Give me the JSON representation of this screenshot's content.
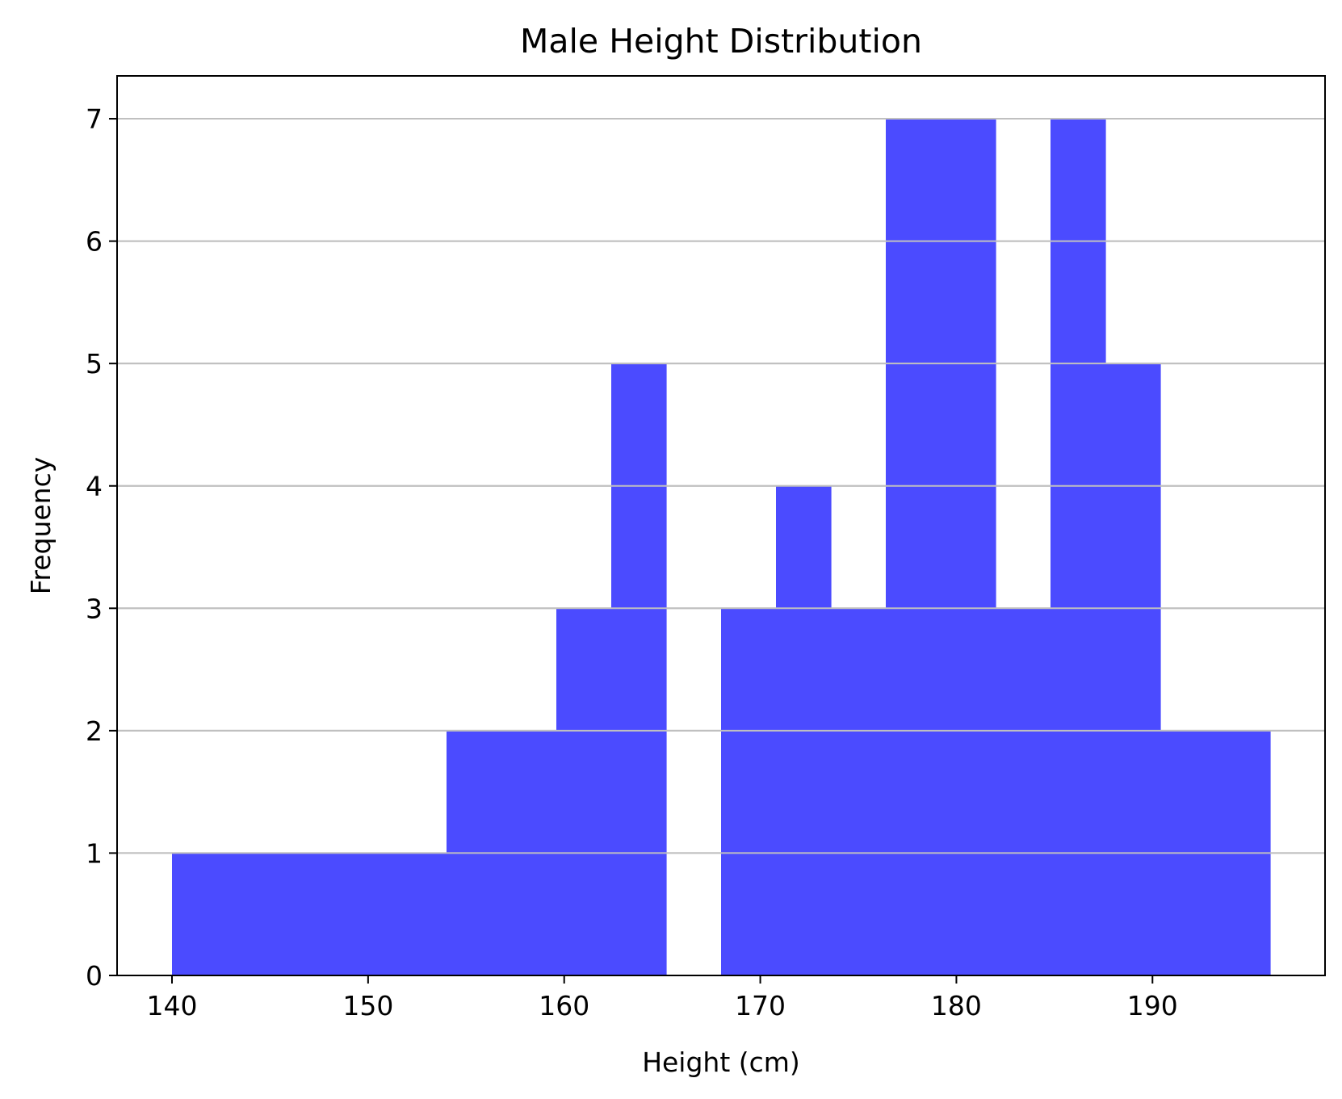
{
  "chart_data": {
    "type": "bar",
    "title": "Male Height Distribution",
    "xlabel": "Height (cm)",
    "ylabel": "Frequency",
    "xlim": [
      137.2,
      198.8
    ],
    "ylim": [
      0,
      7.35
    ],
    "xticks": [
      140,
      150,
      160,
      170,
      180,
      190
    ],
    "yticks": [
      0,
      1,
      2,
      3,
      4,
      5,
      6,
      7
    ],
    "grid": "horizontal",
    "bar_color": "#4b4bff",
    "bins": [
      {
        "x0": 140.0,
        "x1": 142.8,
        "value": 1
      },
      {
        "x0": 142.8,
        "x1": 145.6,
        "value": 1
      },
      {
        "x0": 145.6,
        "x1": 148.4,
        "value": 1
      },
      {
        "x0": 148.4,
        "x1": 151.2,
        "value": 1
      },
      {
        "x0": 151.2,
        "x1": 154.0,
        "value": 1
      },
      {
        "x0": 154.0,
        "x1": 156.8,
        "value": 2
      },
      {
        "x0": 156.8,
        "x1": 159.6,
        "value": 2
      },
      {
        "x0": 159.6,
        "x1": 162.4,
        "value": 3
      },
      {
        "x0": 162.4,
        "x1": 165.2,
        "value": 5
      },
      {
        "x0": 165.2,
        "x1": 168.0,
        "value": 0
      },
      {
        "x0": 168.0,
        "x1": 170.8,
        "value": 3
      },
      {
        "x0": 170.8,
        "x1": 173.6,
        "value": 4
      },
      {
        "x0": 173.6,
        "x1": 176.4,
        "value": 3
      },
      {
        "x0": 176.4,
        "x1": 179.2,
        "value": 7
      },
      {
        "x0": 179.2,
        "x1": 182.0,
        "value": 7
      },
      {
        "x0": 182.0,
        "x1": 184.8,
        "value": 3
      },
      {
        "x0": 184.8,
        "x1": 187.6,
        "value": 7
      },
      {
        "x0": 187.6,
        "x1": 190.4,
        "value": 5
      },
      {
        "x0": 190.4,
        "x1": 193.2,
        "value": 2
      },
      {
        "x0": 193.2,
        "x1": 196.0,
        "value": 2
      }
    ]
  }
}
